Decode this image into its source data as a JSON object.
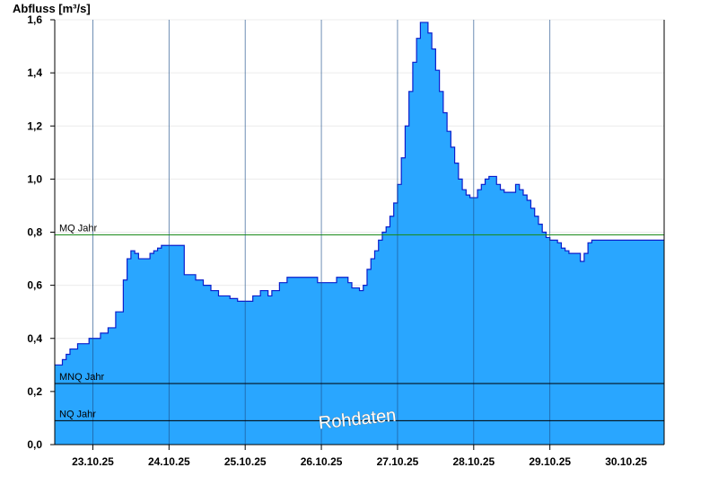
{
  "chart_data": {
    "type": "area",
    "ylabel": "Abfluss [m³/s]",
    "xlabel": "",
    "title": "",
    "ylim": [
      0,
      1.6
    ],
    "y_ticks": [
      "0,0",
      "0,2",
      "0,4",
      "0,6",
      "0,8",
      "1,0",
      "1,2",
      "1,4",
      "1,6"
    ],
    "x_range_days": [
      "22.10.25 12:00",
      "30.10.25 12:00"
    ],
    "x_tick_labels": [
      "23.10.25",
      "24.10.25",
      "25.10.25",
      "26.10.25",
      "27.10.25",
      "28.10.25",
      "29.10.25",
      "30.10.25"
    ],
    "grid": "horizontal",
    "fill_color": "#29a6ff",
    "line_color": "#0a1ecc",
    "series": [
      {
        "x": [
          0.0,
          0.1,
          0.15,
          0.2,
          0.3,
          0.45,
          0.5,
          0.6,
          0.7,
          0.8,
          0.9,
          0.95,
          1.0,
          1.05,
          1.1,
          1.15,
          1.2,
          1.25,
          1.3,
          1.35,
          1.4,
          1.5,
          1.6,
          1.7,
          1.85,
          1.95,
          2.05,
          2.15,
          2.3,
          2.4,
          2.5,
          2.6,
          2.7,
          2.75,
          2.8,
          2.85,
          2.95,
          3.05,
          3.15,
          3.25,
          3.35,
          3.45,
          3.6,
          3.7,
          3.8,
          3.85,
          3.9,
          4.0,
          4.05,
          4.1,
          4.15,
          4.2,
          4.25,
          4.3,
          4.35,
          4.4,
          4.45,
          4.5,
          4.55,
          4.6,
          4.65,
          4.7,
          4.75,
          4.8,
          4.85,
          4.9,
          4.95,
          5.0,
          5.05,
          5.1,
          5.15,
          5.2,
          5.25,
          5.3,
          5.35,
          5.4,
          5.45,
          5.5,
          5.55,
          5.6,
          5.65,
          5.7,
          5.75,
          5.8,
          5.85,
          5.9,
          5.95,
          6.0,
          6.05,
          6.1,
          6.15,
          6.2,
          6.25,
          6.3,
          6.35,
          6.4,
          6.45,
          6.5,
          6.55,
          6.6,
          6.65,
          6.7,
          6.75,
          6.8,
          6.85,
          6.9,
          6.95,
          7.0,
          7.05,
          7.1,
          7.2,
          7.3,
          7.4,
          7.5,
          7.6,
          7.7,
          7.8,
          7.9,
          8.0
        ],
        "values": [
          0.3,
          0.32,
          0.34,
          0.36,
          0.38,
          0.4,
          0.4,
          0.42,
          0.44,
          0.5,
          0.62,
          0.7,
          0.73,
          0.72,
          0.7,
          0.7,
          0.7,
          0.72,
          0.73,
          0.74,
          0.75,
          0.75,
          0.75,
          0.64,
          0.62,
          0.6,
          0.58,
          0.56,
          0.55,
          0.54,
          0.54,
          0.56,
          0.58,
          0.58,
          0.56,
          0.58,
          0.61,
          0.63,
          0.63,
          0.63,
          0.63,
          0.61,
          0.61,
          0.63,
          0.63,
          0.61,
          0.59,
          0.58,
          0.6,
          0.66,
          0.7,
          0.73,
          0.77,
          0.8,
          0.82,
          0.86,
          0.91,
          0.98,
          1.08,
          1.2,
          1.33,
          1.44,
          1.53,
          1.59,
          1.59,
          1.55,
          1.49,
          1.41,
          1.33,
          1.25,
          1.18,
          1.12,
          1.06,
          1.0,
          0.96,
          0.94,
          0.93,
          0.93,
          0.96,
          0.98,
          1.0,
          1.01,
          1.01,
          0.98,
          0.96,
          0.95,
          0.95,
          0.95,
          0.98,
          0.96,
          0.94,
          0.92,
          0.89,
          0.86,
          0.83,
          0.8,
          0.78,
          0.77,
          0.77,
          0.76,
          0.74,
          0.73,
          0.72,
          0.72,
          0.72,
          0.69,
          0.72,
          0.76,
          0.77,
          0.77,
          0.77,
          0.77,
          0.77,
          0.77,
          0.77,
          0.77,
          0.77,
          0.77,
          0.77
        ]
      }
    ],
    "reference_lines": [
      {
        "label": "MQ Jahr",
        "value": 0.79,
        "color": "#1a8a1a"
      },
      {
        "label": "MNQ Jahr",
        "value": 0.23,
        "color": "#000000"
      },
      {
        "label": "NQ Jahr",
        "value": 0.09,
        "color": "#000000"
      }
    ],
    "watermark": "Rohdaten"
  }
}
